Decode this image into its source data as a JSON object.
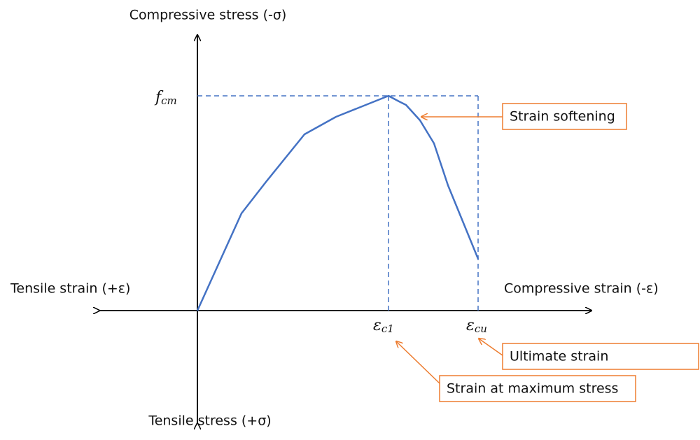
{
  "axes": {
    "top": "Compressive stress (-σ)",
    "bottom": "Tensile stress (+σ)",
    "left": "Tensile strain (+ε)",
    "right": "Compressive strain (-ε)"
  },
  "symbols": {
    "peak_stress": {
      "base": "f",
      "subscript": "cm"
    },
    "peak_strain": {
      "base": "ε",
      "subscript": "c1"
    },
    "ultimate_strain": {
      "base": "ε",
      "subscript": "cu"
    }
  },
  "callouts": [
    "Strain softening",
    "Ultimate strain",
    "Strain at maximum stress"
  ]
}
